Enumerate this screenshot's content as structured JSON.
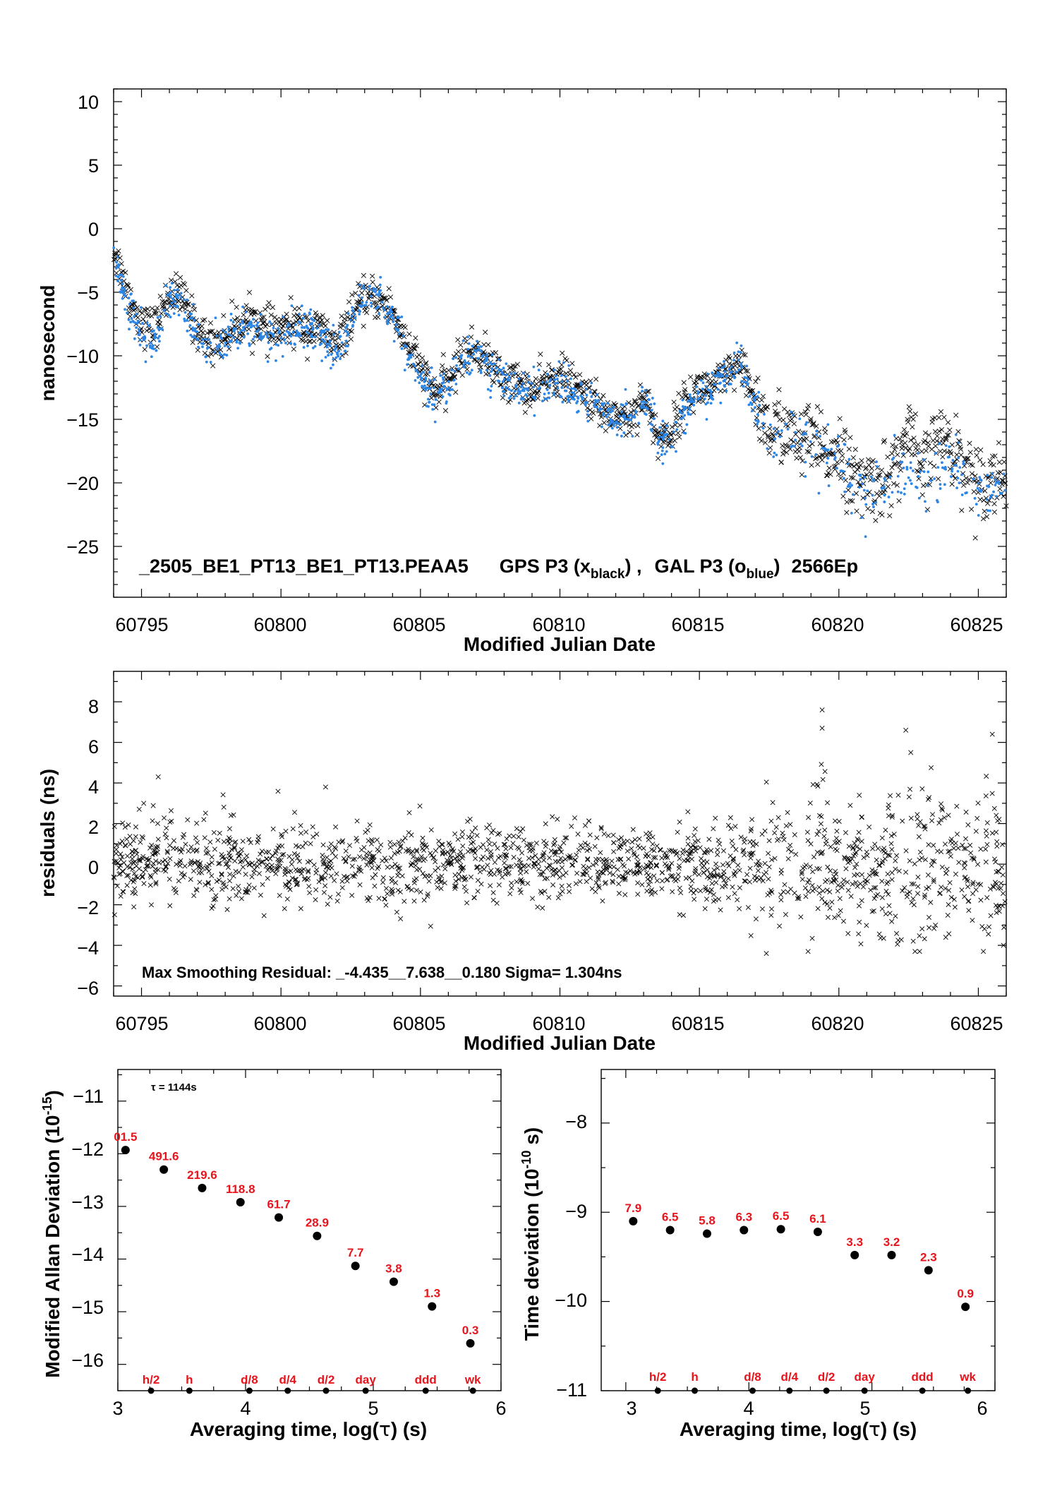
{
  "chart_data": [
    {
      "type": "scatter",
      "annotation": {
        "file": "_2505_BE1_PT13_BE1_PT13.PEAA5",
        "gps_prefix": "GPS P3 (x",
        "gps_sub": "black",
        "gps_suffix": ") ,",
        "gal_prefix": "GAL P3 (o",
        "gal_sub": "blue",
        "gal_suffix": ")",
        "epochs": "2566Ep"
      },
      "xlabel": "Modified Julian Date",
      "ylabel": "nanosecond",
      "xlim": [
        60794.0,
        60826.0
      ],
      "ylim": [
        -29.0,
        11.0
      ],
      "xticks": [
        "60795",
        "60800",
        "60805",
        "60810",
        "60815",
        "60820",
        "60825"
      ],
      "yticks": [
        "10",
        "5",
        "0",
        "−5",
        "−10",
        "−15",
        "−20",
        "−25"
      ],
      "series": [
        {
          "marker": "x",
          "color": "#000000",
          "x": [
            60794.0,
            60794.5,
            60795.0,
            60795.5,
            60796.0,
            60796.5,
            60797.0,
            60797.5,
            60798.0,
            60798.5,
            60799.0,
            60799.5,
            60800.0,
            60800.5,
            60801.0,
            60801.5,
            60802.0,
            60802.5,
            60803.0,
            60803.5,
            60804.0,
            60804.5,
            60805.0,
            60805.5,
            60806.0,
            60806.5,
            60807.0,
            60807.5,
            60808.0,
            60808.5,
            60809.0,
            60809.5,
            60810.0,
            60810.5,
            60811.0,
            60811.5,
            60812.0,
            60812.5,
            60813.0,
            60813.5,
            60814.0,
            60814.5,
            60815.0,
            60815.5,
            60816.0,
            60816.5,
            60817.0,
            60817.5,
            60818.0,
            60818.5,
            60819.0,
            60819.5,
            60820.0,
            60820.5,
            60821.0,
            60821.5,
            60822.0,
            60822.5,
            60823.0,
            60823.5,
            60824.0,
            60824.5,
            60825.0,
            60825.5,
            60826.0
          ],
          "y": [
            -1.5,
            -5.0,
            -7.5,
            -7.8,
            -5.0,
            -5.5,
            -8.0,
            -9.0,
            -8.5,
            -7.5,
            -7.0,
            -8.0,
            -8.0,
            -7.5,
            -8.0,
            -8.0,
            -9.5,
            -7.0,
            -5.5,
            -5.5,
            -6.5,
            -9.0,
            -11.0,
            -13.0,
            -12.0,
            -10.0,
            -9.5,
            -10.5,
            -12.0,
            -12.0,
            -13.0,
            -12.0,
            -11.5,
            -12.5,
            -13.0,
            -14.5,
            -14.5,
            -15.0,
            -13.0,
            -16.5,
            -16.0,
            -13.5,
            -12.5,
            -12.5,
            -11.5,
            -11.0,
            -13.5,
            -16.0,
            -15.5,
            -17.0,
            -16.5,
            -18.0,
            -17.0,
            -20.0,
            -20.0,
            -20.0,
            -19.0,
            -16.0,
            -19.5,
            -16.5,
            -17.0,
            -18.5,
            -20.0,
            -19.5,
            -19.5
          ]
        },
        {
          "marker": "o",
          "color": "#2d86e6",
          "x": [
            60794.0,
            60794.5,
            60795.0,
            60795.5,
            60796.0,
            60796.5,
            60797.0,
            60797.5,
            60798.0,
            60798.5,
            60799.0,
            60799.5,
            60800.0,
            60800.5,
            60801.0,
            60801.5,
            60802.0,
            60802.5,
            60803.0,
            60803.5,
            60804.0,
            60804.5,
            60805.0,
            60805.5,
            60806.0,
            60806.5,
            60807.0,
            60807.5,
            60808.0,
            60808.5,
            60809.0,
            60809.5,
            60810.0,
            60810.5,
            60811.0,
            60811.5,
            60812.0,
            60812.5,
            60813.0,
            60813.5,
            60814.0,
            60814.5,
            60815.0,
            60815.5,
            60816.0,
            60816.5,
            60817.0,
            60817.5,
            60818.0,
            60818.5,
            60819.0,
            60819.5,
            60820.0,
            60820.5,
            60821.0,
            60821.5,
            60822.0,
            60822.5,
            60823.0,
            60823.5,
            60824.0,
            60824.5,
            60825.0,
            60825.5,
            60826.0
          ],
          "y": [
            -2.0,
            -6.0,
            -8.5,
            -9.0,
            -5.5,
            -6.0,
            -8.5,
            -9.5,
            -8.5,
            -8.0,
            -7.5,
            -8.5,
            -8.5,
            -8.0,
            -8.0,
            -8.5,
            -10.0,
            -7.5,
            -5.5,
            -5.5,
            -7.0,
            -9.5,
            -12.0,
            -13.0,
            -12.0,
            -10.0,
            -10.0,
            -11.0,
            -12.0,
            -12.5,
            -13.0,
            -12.5,
            -12.0,
            -13.0,
            -13.5,
            -14.5,
            -15.0,
            -15.0,
            -13.5,
            -16.5,
            -16.5,
            -14.0,
            -13.0,
            -12.5,
            -11.5,
            -10.5,
            -14.0,
            -16.5,
            -16.0,
            -16.5,
            -17.0,
            -18.5,
            -18.0,
            -20.0,
            -21.5,
            -20.5,
            -19.5,
            -19.0,
            -19.5,
            -19.0,
            -18.5,
            -19.0,
            -20.5,
            -20.0,
            -20.0
          ]
        }
      ]
    },
    {
      "type": "scatter",
      "annotation": "Max Smoothing Residual: _-4.435__7.638__0.180  Sigma= 1.304ns",
      "xlabel": "Modified Julian Date",
      "ylabel": "residuals (ns)",
      "xlim": [
        60794.0,
        60826.0
      ],
      "ylim": [
        -6.5,
        9.5
      ],
      "xticks": [
        "60795",
        "60800",
        "60805",
        "60810",
        "60815",
        "60820",
        "60825"
      ],
      "yticks": [
        "8",
        "6",
        "4",
        "2",
        "0",
        "−2",
        "−4",
        "−6"
      ],
      "series": [
        {
          "marker": "x",
          "color": "#000000",
          "band_x": [
            60794.0,
            60800.0,
            60805.0,
            60810.0,
            60815.0,
            60816.5,
            60817.5,
            60818.5,
            60819.5,
            60820.5,
            60821.5,
            60822.5,
            60823.5,
            60824.5,
            60825.5,
            60826.0
          ],
          "band_sigma": [
            1.1,
            1.0,
            0.9,
            0.9,
            0.9,
            1.0,
            1.6,
            1.4,
            2.2,
            1.8,
            1.5,
            2.6,
            1.8,
            1.4,
            2.0,
            1.4
          ],
          "outliers": [
            [
              60795.6,
              4.3
            ],
            [
              60801.6,
              3.8
            ],
            [
              60817.4,
              -4.4
            ],
            [
              60819.4,
              7.6
            ],
            [
              60819.4,
              6.7
            ],
            [
              60822.4,
              6.6
            ],
            [
              60825.5,
              6.4
            ],
            [
              60825.9,
              -4.0
            ]
          ]
        }
      ]
    },
    {
      "type": "scatter",
      "annotation": "τ = 1144s",
      "xlabel_prefix": "Averaging time, log(",
      "xlabel_tau": "τ",
      "xlabel_suffix": ") (s)",
      "ylabel_prefix": "Modified Allan Deviation (10",
      "ylabel_exp": "-15",
      "ylabel_suffix": ")",
      "xlim": [
        3.0,
        6.0
      ],
      "ylim": [
        -16.5,
        -10.4
      ],
      "xticks": [
        "3",
        "4",
        "5",
        "6"
      ],
      "yticks": [
        "−11",
        "−12",
        "−13",
        "−14",
        "−15",
        "−16"
      ],
      "x": [
        3.06,
        3.36,
        3.66,
        3.96,
        4.26,
        4.56,
        4.86,
        5.16,
        5.46,
        5.76
      ],
      "y": [
        -11.93,
        -12.3,
        -12.65,
        -12.92,
        -13.21,
        -13.56,
        -14.13,
        -14.43,
        -14.9,
        -15.6
      ],
      "point_labels": [
        "01.5",
        "491.6",
        "219.6",
        "118.8",
        "61.7",
        "28.9",
        "7.7",
        "3.8",
        "1.3",
        "0.3"
      ],
      "time_markers": {
        "x": [
          3.26,
          3.56,
          4.03,
          4.33,
          4.63,
          4.94,
          5.41,
          5.78
        ],
        "labels": [
          "h/2",
          "h",
          "d/8",
          "d/4",
          "d/2",
          "day",
          "ddd",
          "wk"
        ]
      }
    },
    {
      "type": "scatter",
      "xlabel_prefix": "Averaging time, log(",
      "xlabel_tau": "τ",
      "xlabel_suffix": ") (s)",
      "ylabel_prefix": "Time deviation (10",
      "ylabel_exp": "-10",
      "ylabel_suffix": " s)",
      "xlim": [
        2.8,
        6.0
      ],
      "ylim": [
        -11.0,
        -7.4
      ],
      "xticks": [
        "3",
        "4",
        "5",
        "6"
      ],
      "yticks": [
        "−8",
        "−9",
        "−10",
        "−11"
      ],
      "x": [
        3.06,
        3.36,
        3.66,
        3.96,
        4.26,
        4.56,
        4.86,
        5.16,
        5.46,
        5.76
      ],
      "y": [
        -9.1,
        -9.2,
        -9.24,
        -9.2,
        -9.19,
        -9.22,
        -9.48,
        -9.48,
        -9.65,
        -10.06
      ],
      "point_labels": [
        "7.9",
        "6.5",
        "5.8",
        "6.3",
        "6.5",
        "6.1",
        "3.3",
        "3.2",
        "2.3",
        "0.9"
      ],
      "time_markers": {
        "x": [
          3.26,
          3.56,
          4.03,
          4.33,
          4.63,
          4.94,
          5.41,
          5.78
        ],
        "labels": [
          "h/2",
          "h",
          "d/8",
          "d/4",
          "d/2",
          "day",
          "ddd",
          "wk"
        ]
      }
    }
  ]
}
